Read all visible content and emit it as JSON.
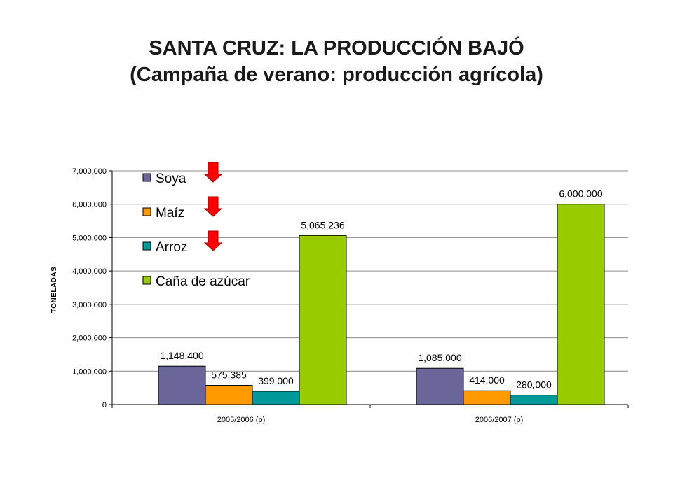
{
  "title": {
    "line1": "SANTA CRUZ: LA PRODUCCIÓN BAJÓ",
    "line2": "(Campaña de verano: producción agrícola)"
  },
  "chart_data": {
    "type": "bar",
    "categories": [
      "2005/2006 (p)",
      "2006/2007 (p)"
    ],
    "series": [
      {
        "name": "Soya",
        "values": [
          1148400,
          1085000
        ],
        "labels": [
          "1,148,400",
          "1,085,000"
        ],
        "color": "#6b6699",
        "arrow": "down"
      },
      {
        "name": "Maíz",
        "values": [
          575385,
          414000
        ],
        "labels": [
          "575,385",
          "414,000"
        ],
        "color": "#ff9900",
        "arrow": "down"
      },
      {
        "name": "Arroz",
        "values": [
          399000,
          280000
        ],
        "labels": [
          "399,000",
          "280,000"
        ],
        "color": "#009999",
        "arrow": "down"
      },
      {
        "name": "Caña de azúcar",
        "values": [
          5065236,
          6000000
        ],
        "labels": [
          "5,065,236",
          "6,000,000"
        ],
        "color": "#99cc00"
      }
    ],
    "ylabel": "TONELADAS",
    "xlabel": "",
    "ylim": [
      0,
      7000000
    ],
    "yticks": [
      0,
      1000000,
      2000000,
      3000000,
      4000000,
      5000000,
      6000000,
      7000000
    ],
    "ytick_labels": [
      "0",
      "1,000,000",
      "2,000,000",
      "3,000,000",
      "4,000,000",
      "5,000,000",
      "6,000,000",
      "7,000,000"
    ],
    "grid": true,
    "legend": "top-left inside plot",
    "arrow_color": "#ff0000"
  }
}
